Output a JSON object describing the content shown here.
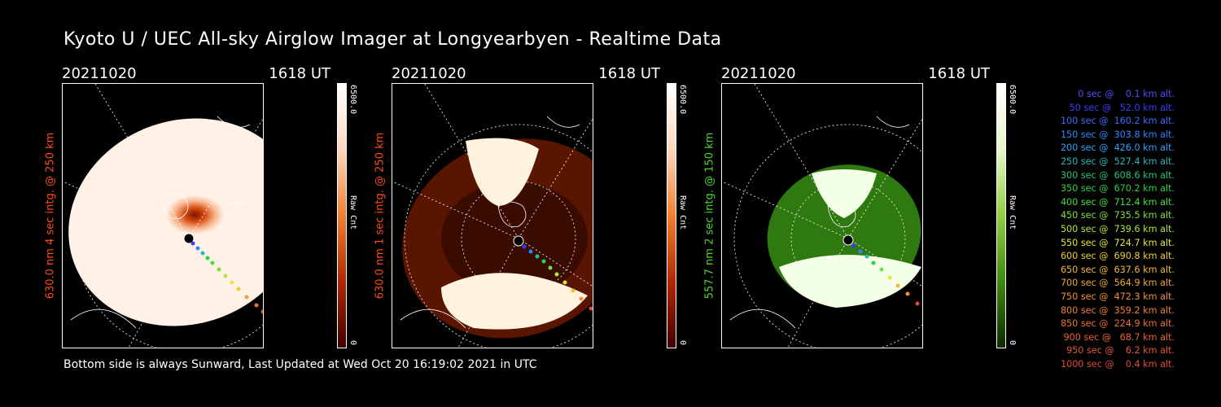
{
  "header": {
    "title": "Kyoto U / UEC All-sky Airglow Imager at Longyearbyen - Realtime Data"
  },
  "panels": [
    {
      "date": "20211020",
      "ut": "1618 UT",
      "side_label": "630.0 nm 4 sec intg. @ 250 km",
      "side_color": "#ff4a1a",
      "cbar_max": "6500.0",
      "cbar_min": "0",
      "cbar_label": "Raw Cnt",
      "palette": "red-saturated"
    },
    {
      "date": "20211020",
      "ut": "1618 UT",
      "side_label": "630.0 nm 1 sec intg. @ 250 km",
      "side_color": "#ff4a1a",
      "cbar_max": "6500.0",
      "cbar_min": "0",
      "cbar_label": "Raw Cnt",
      "palette": "red-dark"
    },
    {
      "date": "20211020",
      "ut": "1618 UT",
      "side_label": "557.7 nm 2 sec intg. @ 150 km",
      "side_color": "#4dd62e",
      "cbar_max": "6500.0",
      "cbar_min": "0",
      "cbar_label": "Raw Cnt",
      "palette": "green"
    }
  ],
  "legend": [
    {
      "text": "0 sec @    0.1 km alt.",
      "color": "#4d4dff"
    },
    {
      "text": "50 sec @   52.0 km alt.",
      "color": "#3b3bff"
    },
    {
      "text": "100 sec @  160.2 km alt.",
      "color": "#3b6bff"
    },
    {
      "text": "150 sec @  303.8 km alt.",
      "color": "#2f86ff"
    },
    {
      "text": "200 sec @  426.0 km alt.",
      "color": "#2aa3ff"
    },
    {
      "text": "250 sec @  527.4 km alt.",
      "color": "#26b7b7"
    },
    {
      "text": "300 sec @  608.6 km alt.",
      "color": "#21c47a"
    },
    {
      "text": "350 sec @  670.2 km alt.",
      "color": "#2bd24a"
    },
    {
      "text": "400 sec @  712.4 km alt.",
      "color": "#3fe03a"
    },
    {
      "text": "450 sec @  735.5 km alt.",
      "color": "#7de03a"
    },
    {
      "text": "500 sec @  739.6 km alt.",
      "color": "#b2e73a"
    },
    {
      "text": "550 sec @  724.7 km alt.",
      "color": "#e6e635"
    },
    {
      "text": "600 sec @  690.8 km alt.",
      "color": "#f0cf35"
    },
    {
      "text": "650 sec @  637.6 km alt.",
      "color": "#f2b935"
    },
    {
      "text": "700 sec @  564.9 km alt.",
      "color": "#f2a335"
    },
    {
      "text": "750 sec @  472.3 km alt.",
      "color": "#f29035"
    },
    {
      "text": "800 sec @  359.2 km alt.",
      "color": "#f07f35"
    },
    {
      "text": "850 sec @  224.9 km alt.",
      "color": "#ef6e35"
    },
    {
      "text": "900 sec @   68.7 km alt.",
      "color": "#ec6035"
    },
    {
      "text": "950 sec @    6.2 km alt.",
      "color": "#e85535"
    },
    {
      "text": "1000 sec @    0.4 km alt.",
      "color": "#e44a35"
    }
  ],
  "footer": {
    "text": "Bottom side is always Sunward, Last Updated at Wed Oct 20 16:19:02 2021 in UTC"
  }
}
